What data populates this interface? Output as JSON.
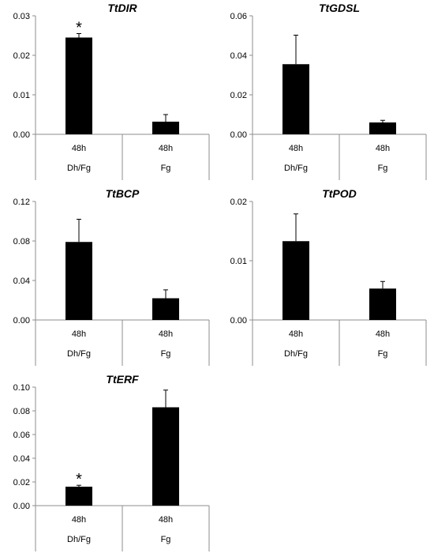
{
  "chart_data": [
    {
      "type": "bar",
      "title": "TtDIR",
      "categories": [
        [
          "48h",
          "Dh/Fg"
        ],
        [
          "48h",
          "Fg"
        ]
      ],
      "values": [
        0.0245,
        0.0032
      ],
      "errors": [
        0.001,
        0.0018
      ],
      "annotations": [
        "*",
        ""
      ],
      "ylim": [
        0,
        0.03
      ],
      "yticks": [
        "0.00",
        "0.01",
        "0.02",
        "0.03"
      ],
      "ytick_values": [
        0,
        0.01,
        0.02,
        0.03
      ],
      "bar_color": "#000000",
      "grid": false
    },
    {
      "type": "bar",
      "title": "TtGDSL",
      "categories": [
        [
          "48h",
          "Dh/Fg"
        ],
        [
          "48h",
          "Fg"
        ]
      ],
      "values": [
        0.0355,
        0.006
      ],
      "errors": [
        0.0147,
        0.0011
      ],
      "annotations": [
        "",
        ""
      ],
      "ylim": [
        0,
        0.06
      ],
      "yticks": [
        "0.00",
        "0.02",
        "0.04",
        "0.06"
      ],
      "ytick_values": [
        0,
        0.02,
        0.04,
        0.06
      ],
      "bar_color": "#000000",
      "grid": false
    },
    {
      "type": "bar",
      "title": "TtBCP",
      "categories": [
        [
          "48h",
          "Dh/Fg"
        ],
        [
          "48h",
          "Fg"
        ]
      ],
      "values": [
        0.079,
        0.022
      ],
      "errors": [
        0.023,
        0.0085
      ],
      "annotations": [
        "",
        ""
      ],
      "ylim": [
        0,
        0.12
      ],
      "yticks": [
        "0.00",
        "0.04",
        "0.08",
        "0.12"
      ],
      "ytick_values": [
        0,
        0.04,
        0.08,
        0.12
      ],
      "bar_color": "#000000",
      "grid": false
    },
    {
      "type": "bar",
      "title": "TtPOD",
      "categories": [
        [
          "48h",
          "Dh/Fg"
        ],
        [
          "48h",
          "Fg"
        ]
      ],
      "values": [
        0.0133,
        0.0053
      ],
      "errors": [
        0.0046,
        0.0012
      ],
      "annotations": [
        "",
        ""
      ],
      "ylim": [
        0,
        0.02
      ],
      "yticks": [
        "0.00",
        "0.01",
        "0.02"
      ],
      "ytick_values": [
        0,
        0.01,
        0.02
      ],
      "bar_color": "#000000",
      "grid": false
    },
    {
      "type": "bar",
      "title": "TtERF",
      "categories": [
        [
          "48h",
          "Dh/Fg"
        ],
        [
          "48h",
          "Fg"
        ]
      ],
      "values": [
        0.016,
        0.083
      ],
      "errors": [
        0.0012,
        0.0145
      ],
      "annotations": [
        "*",
        ""
      ],
      "ylim": [
        0,
        0.1
      ],
      "yticks": [
        "0.00",
        "0.02",
        "0.04",
        "0.06",
        "0.08",
        "0.10"
      ],
      "ytick_values": [
        0,
        0.02,
        0.04,
        0.06,
        0.08,
        0.1
      ],
      "bar_color": "#000000",
      "grid": false
    }
  ]
}
